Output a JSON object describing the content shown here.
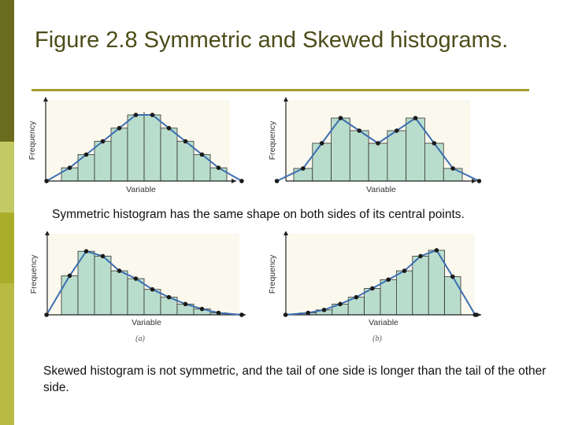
{
  "slide": {
    "title": "Figure 2.8 Symmetric and Skewed histograms.",
    "caption_symmetric": "Symmetric histogram has the same shape on both sides of its central points.",
    "caption_skewed": "Skewed histogram is not symmetric, and the tail of one side is longer than the tail of the other side."
  },
  "colors": {
    "title": "#4d4d1a",
    "rule": "#a59c2e",
    "bar_fill": "#b9ddcc",
    "polygon": "#3c6fb0",
    "point": "#1a1a1a",
    "panel_bg": "#fbf8ee"
  },
  "chart_data": [
    {
      "type": "bar",
      "xlabel": "Variable",
      "ylabel": "Frequency",
      "sublabel": "",
      "values": [
        1,
        2,
        3,
        4,
        5,
        5,
        4,
        3,
        2,
        1
      ],
      "polygon": true
    },
    {
      "type": "bar",
      "xlabel": "Variable",
      "ylabel": "Frequency",
      "sublabel": "",
      "values": [
        1,
        3,
        5,
        4,
        3,
        4,
        5,
        3,
        1
      ],
      "polygon": true
    },
    {
      "type": "bar",
      "xlabel": "Variable",
      "ylabel": "Frequency",
      "sublabel": "(a)",
      "values": [
        4,
        6.5,
        6,
        4.5,
        3.7,
        2.6,
        1.8,
        1.1,
        0.6,
        0.2
      ],
      "polygon": true
    },
    {
      "type": "bar",
      "xlabel": "Variable",
      "ylabel": "Frequency",
      "sublabel": "(b)",
      "values": [
        0.2,
        0.5,
        1.1,
        1.8,
        2.7,
        3.6,
        4.5,
        6,
        6.6,
        3.9
      ],
      "polygon": true
    }
  ]
}
